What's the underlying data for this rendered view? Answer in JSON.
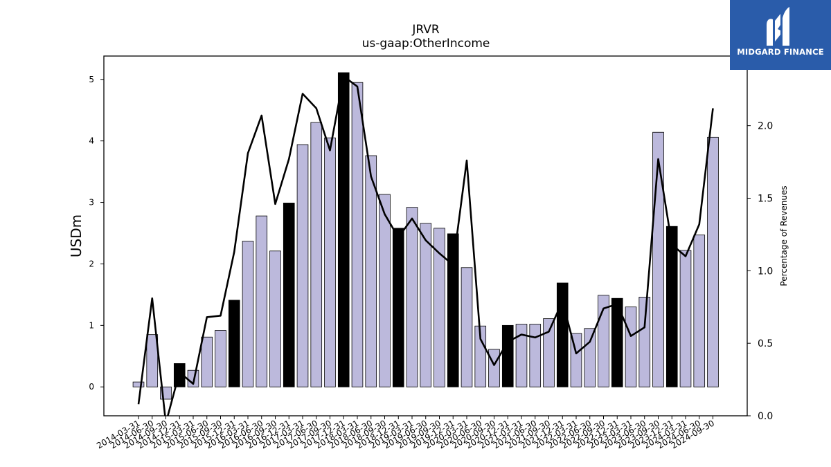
{
  "chart_data": {
    "type": "bar",
    "title": "JRVR",
    "subtitle": "us-gaap:OtherIncome",
    "ylabel": "USDm",
    "y2label": "Percentage of Revenues",
    "ylim": [
      -0.47,
      5.38
    ],
    "y2lim": [
      0.0,
      2.48
    ],
    "yticks": [
      0,
      1,
      2,
      3,
      4,
      5
    ],
    "y2ticks": [
      0.0,
      0.5,
      1.0,
      1.5,
      2.0
    ],
    "bar_color": "#bcb9dc",
    "highlight_color": "#000000",
    "line_color": "#000000",
    "categories": [
      "2014-03-31",
      "2014-06-30",
      "2014-09-30",
      "2014-12-31",
      "2015-03-31",
      "2015-06-30",
      "2015-09-30",
      "2015-12-31",
      "2016-03-31",
      "2016-06-30",
      "2016-09-30",
      "2016-12-31",
      "2017-03-31",
      "2017-06-30",
      "2017-09-30",
      "2017-12-31",
      "2018-03-31",
      "2018-06-30",
      "2018-09-30",
      "2018-12-31",
      "2019-03-31",
      "2019-06-30",
      "2019-09-30",
      "2019-12-31",
      "2020-03-31",
      "2020-06-30",
      "2020-09-30",
      "2020-12-31",
      "2021-03-31",
      "2021-06-30",
      "2021-09-30",
      "2021-12-31",
      "2022-03-31",
      "2022-06-30",
      "2022-09-30",
      "2022-12-31",
      "2023-03-31",
      "2023-06-30",
      "2023-09-30",
      "2023-12-31",
      "2024-03-31",
      "2024-06-30",
      "2024-09-30"
    ],
    "series": [
      {
        "values": [
          0.08,
          0.85,
          -0.2,
          0.38,
          0.27,
          0.81,
          0.92,
          1.41,
          2.37,
          2.78,
          2.21,
          2.99,
          3.94,
          4.3,
          4.05,
          5.11,
          4.95,
          3.76,
          3.13,
          2.58,
          2.92,
          2.66,
          2.58,
          2.49,
          1.94,
          0.99,
          0.61,
          1.0,
          1.02,
          1.02,
          1.11,
          1.69,
          0.87,
          0.95,
          1.49,
          1.44,
          1.3,
          1.46,
          4.14,
          2.61,
          2.22,
          2.47,
          4.06
        ],
        "highlight": [
          false,
          false,
          false,
          true,
          false,
          false,
          false,
          true,
          false,
          false,
          false,
          true,
          false,
          false,
          false,
          true,
          false,
          false,
          false,
          true,
          false,
          false,
          false,
          true,
          false,
          false,
          false,
          true,
          false,
          false,
          false,
          true,
          false,
          false,
          false,
          true,
          false,
          false,
          false,
          true,
          false,
          false,
          false
        ]
      },
      {
        "axis": "right",
        "values": [
          0.08,
          0.81,
          -0.05,
          0.3,
          0.22,
          0.68,
          0.69,
          1.13,
          1.81,
          2.07,
          1.46,
          1.77,
          2.22,
          2.12,
          1.83,
          2.34,
          2.27,
          1.65,
          1.39,
          1.23,
          1.36,
          1.21,
          1.12,
          1.04,
          1.76,
          0.53,
          0.35,
          0.51,
          0.56,
          0.54,
          0.58,
          0.79,
          0.43,
          0.51,
          0.74,
          0.77,
          0.55,
          0.61,
          1.77,
          1.18,
          1.1,
          1.32,
          2.12
        ]
      }
    ]
  },
  "logo": {
    "text": "MIDGARD FINANCE",
    "background": "#2a5caa"
  }
}
